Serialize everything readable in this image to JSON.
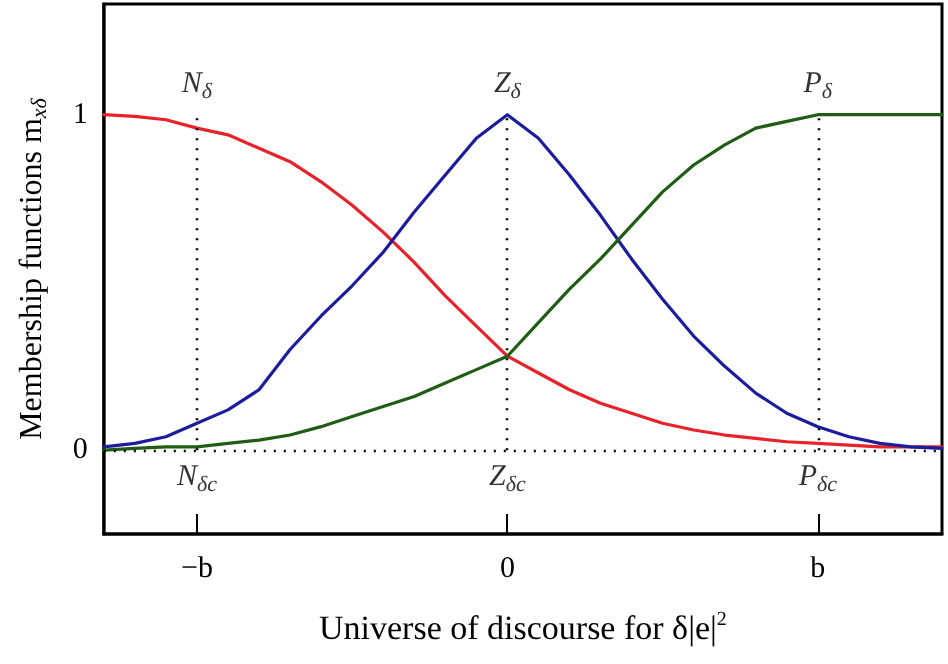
{
  "chart_data": {
    "type": "line",
    "xlabel": "Universe of discourse for δ|e|$^{2}$",
    "ylabel": "Membership functions m$_{xδ}$",
    "categories": [
      null,
      null,
      null,
      "−b",
      null,
      null,
      null,
      null,
      null,
      null,
      null,
      null,
      null,
      "0",
      null,
      null,
      null,
      null,
      null,
      null,
      null,
      null,
      null,
      "b",
      null,
      null,
      null,
      null
    ],
    "series": [
      {
        "color": "#e8222a",
        "values": [
          1.0,
          0.995,
          0.985,
          0.96,
          0.94,
          0.9,
          0.86,
          0.8,
          0.73,
          0.65,
          0.56,
          0.46,
          0.37,
          0.28,
          0.23,
          0.18,
          0.14,
          0.11,
          0.08,
          0.06,
          0.045,
          0.035,
          0.025,
          0.02,
          0.015,
          0.01,
          0.01,
          0.01
        ]
      },
      {
        "color": "#1c1c9c",
        "values": [
          0.01,
          0.02,
          0.04,
          0.08,
          0.12,
          0.18,
          0.3,
          0.4,
          0.49,
          0.59,
          0.71,
          0.82,
          0.93,
          1.0,
          0.93,
          0.82,
          0.7,
          0.57,
          0.45,
          0.34,
          0.25,
          0.17,
          0.11,
          0.07,
          0.04,
          0.02,
          0.01,
          0.005
        ]
      },
      {
        "color": "#1f5c14",
        "values": [
          0.0,
          0.005,
          0.01,
          0.01,
          0.02,
          0.03,
          0.045,
          0.07,
          0.1,
          0.13,
          0.16,
          0.2,
          0.24,
          0.28,
          0.38,
          0.48,
          0.57,
          0.67,
          0.77,
          0.85,
          0.91,
          0.96,
          0.98,
          1.0,
          1.0,
          1.0,
          1.0,
          1.0
        ]
      }
    ],
    "ylim": [
      -0.25,
      1.33
    ],
    "yticks": [
      0,
      1
    ],
    "grid": false,
    "marker": "none",
    "line_style": "solid",
    "ref_lines": [
      {
        "axis": "x",
        "value": "−b",
        "line_style": "dotted",
        "color": "#000000"
      },
      {
        "axis": "x",
        "value": "0",
        "line_style": "dotted",
        "color": "#000000"
      },
      {
        "axis": "x",
        "value": "b",
        "line_style": "dotted",
        "color": "#000000"
      },
      {
        "axis": "y",
        "value": 0,
        "line_style": "dotted",
        "color": "#000000"
      }
    ],
    "annotations": [
      {
        "text": "N$_{δ}$",
        "x": "−b",
        "y": 1
      },
      {
        "text": "Z$_{δ}$",
        "x": "0",
        "y": 1
      },
      {
        "text": "P$_{δ}$",
        "x": "b",
        "y": 1
      },
      {
        "text": "N$_{δc}$",
        "x": "−b",
        "y": 0
      },
      {
        "text": "Z$_{δc}$",
        "x": "0",
        "y": 0
      },
      {
        "text": "P$_{δc}$",
        "x": "b",
        "y": 0
      }
    ]
  }
}
